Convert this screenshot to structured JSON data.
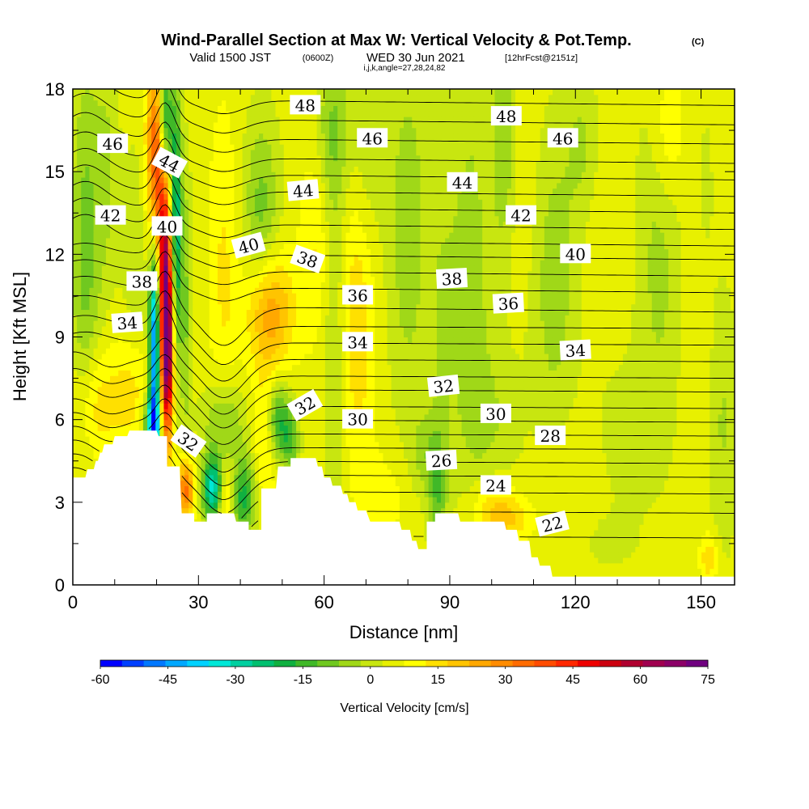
{
  "chart_data": {
    "type": "heatmap",
    "title": "Wind-Parallel Section at Max W: Vertical Velocity & Pot.Temp.",
    "title_unit": "(C)",
    "subtitle_valid": "Valid 1500 JST",
    "subtitle_utc": "(0600Z)",
    "subtitle_date": "WED 30 Jun 2021",
    "subtitle_fcst": "[12hrFcst@2151z]",
    "subtitle_index": "i,j,k,angle=27,28,24,82",
    "xlabel": "Distance [nm]",
    "ylabel": "Height [Kft MSL]",
    "xlim": [
      0,
      158
    ],
    "ylim": [
      0,
      18
    ],
    "x_ticks": [
      "0",
      "30",
      "60",
      "90",
      "120",
      "150"
    ],
    "y_ticks": [
      "0",
      "3",
      "6",
      "9",
      "12",
      "15",
      "18"
    ],
    "colorbar": {
      "title": "Vertical Velocity [cm/s]",
      "min": -60,
      "max": 75,
      "labels": [
        "-60",
        "-45",
        "-30",
        "-15",
        "0",
        "15",
        "30",
        "45",
        "60",
        "75"
      ],
      "colors": [
        "#0000ff",
        "#0040ff",
        "#0078ff",
        "#00a8ff",
        "#00d2ff",
        "#00e8d8",
        "#00d0a0",
        "#00c070",
        "#10b040",
        "#40b828",
        "#70c820",
        "#a0d818",
        "#c8e610",
        "#e8f000",
        "#ffff00",
        "#ffe000",
        "#ffc400",
        "#ffa800",
        "#ff8c00",
        "#ff6c00",
        "#ff4c00",
        "#ff2800",
        "#ee0000",
        "#cc0010",
        "#b00030",
        "#a00050",
        "#8c0068",
        "#700080"
      ]
    },
    "background_level": 5,
    "w_features": [
      {
        "x": 22.5,
        "y": 8.8,
        "sx": 1.1,
        "sy": 2.4,
        "w": 75
      },
      {
        "x": 22.0,
        "y": 12.5,
        "sx": 1.2,
        "sy": 2.0,
        "w": 30
      },
      {
        "x": 20.0,
        "y": 14.5,
        "sx": 1.6,
        "sy": 2.0,
        "w": 28
      },
      {
        "x": 19.5,
        "y": 17.0,
        "sx": 1.5,
        "sy": 1.5,
        "w": 15
      },
      {
        "x": 19.5,
        "y": 8.5,
        "sx": 0.9,
        "sy": 2.6,
        "w": -55
      },
      {
        "x": 24.5,
        "y": 13.0,
        "sx": 1.0,
        "sy": 3.5,
        "w": -35
      },
      {
        "x": 22.0,
        "y": 16.8,
        "sx": 1.0,
        "sy": 1.5,
        "w": -30
      },
      {
        "x": 27.0,
        "y": 10.0,
        "sx": 1.0,
        "sy": 3.5,
        "w": -12
      },
      {
        "x": 19.0,
        "y": 5.8,
        "sx": 1.5,
        "sy": 0.8,
        "w": -35
      },
      {
        "x": 27.0,
        "y": 3.5,
        "sx": 1.4,
        "sy": 0.8,
        "w": 30
      },
      {
        "x": 33.5,
        "y": 3.5,
        "sx": 1.8,
        "sy": 0.8,
        "w": -40
      },
      {
        "x": 36.5,
        "y": 3.3,
        "sx": 1.8,
        "sy": 0.9,
        "w": 18
      },
      {
        "x": 40.5,
        "y": 3.2,
        "sx": 2.2,
        "sy": 1.0,
        "w": -25
      },
      {
        "x": 36.0,
        "y": 5.8,
        "sx": 3.5,
        "sy": 1.2,
        "w": -14
      },
      {
        "x": 46.0,
        "y": 5.5,
        "sx": 2.0,
        "sy": 2.0,
        "w": 10
      },
      {
        "x": 49.0,
        "y": 6.0,
        "sx": 2.0,
        "sy": 1.0,
        "w": -22
      },
      {
        "x": 52.0,
        "y": 5.2,
        "sx": 1.5,
        "sy": 0.8,
        "w": -15
      },
      {
        "x": 47.0,
        "y": 10.0,
        "sx": 4.0,
        "sy": 1.5,
        "w": 22
      },
      {
        "x": 45.0,
        "y": 13.5,
        "sx": 3.0,
        "sy": 2.5,
        "w": -14
      },
      {
        "x": 36.0,
        "y": 11.5,
        "sx": 2.5,
        "sy": 4.0,
        "w": 8
      },
      {
        "x": 3.0,
        "y": 12.0,
        "sx": 2.5,
        "sy": 5.0,
        "w": -14
      },
      {
        "x": 8.0,
        "y": 15.0,
        "sx": 2.0,
        "sy": 3.0,
        "w": -8
      },
      {
        "x": 5.0,
        "y": 6.5,
        "sx": 3.5,
        "sy": 1.5,
        "w": 12
      },
      {
        "x": 14.0,
        "y": 7.0,
        "sx": 3.5,
        "sy": 1.5,
        "w": 10
      },
      {
        "x": 15.0,
        "y": 12.0,
        "sx": 2.5,
        "sy": 3.0,
        "w": -6
      },
      {
        "x": 68.0,
        "y": 10.0,
        "sx": 3.0,
        "sy": 4.0,
        "w": 12
      },
      {
        "x": 62.5,
        "y": 9.5,
        "sx": 2.0,
        "sy": 6.0,
        "w": -8
      },
      {
        "x": 58.0,
        "y": 12.5,
        "sx": 2.5,
        "sy": 2.5,
        "w": 8
      },
      {
        "x": 70.0,
        "y": 15.5,
        "sx": 3.0,
        "sy": 3.0,
        "w": -8
      },
      {
        "x": 62.0,
        "y": 16.5,
        "sx": 3.0,
        "sy": 2.0,
        "w": -10
      },
      {
        "x": 80.0,
        "y": 13.0,
        "sx": 3.5,
        "sy": 5.0,
        "w": -10
      },
      {
        "x": 88.0,
        "y": 9.5,
        "sx": 2.5,
        "sy": 5.0,
        "w": -6
      },
      {
        "x": 87.0,
        "y": 3.5,
        "sx": 1.5,
        "sy": 1.5,
        "w": -15
      },
      {
        "x": 83.5,
        "y": 4.8,
        "sx": 2.0,
        "sy": 1.0,
        "w": -8
      },
      {
        "x": 75.0,
        "y": 3.2,
        "sx": 4.0,
        "sy": 1.2,
        "w": 5
      },
      {
        "x": 95.0,
        "y": 11.0,
        "sx": 3.5,
        "sy": 5.5,
        "w": -10
      },
      {
        "x": 101.0,
        "y": 6.0,
        "sx": 4.5,
        "sy": 2.0,
        "w": -6
      },
      {
        "x": 100.0,
        "y": 2.8,
        "sx": 4.0,
        "sy": 0.8,
        "w": 10
      },
      {
        "x": 104.0,
        "y": 2.4,
        "sx": 4.0,
        "sy": 0.6,
        "w": 10
      },
      {
        "x": 103.0,
        "y": 16.0,
        "sx": 2.0,
        "sy": 3.0,
        "w": -12
      },
      {
        "x": 115.0,
        "y": 11.0,
        "sx": 4.0,
        "sy": 4.0,
        "w": -10
      },
      {
        "x": 107.0,
        "y": 14.5,
        "sx": 3.0,
        "sy": 2.5,
        "w": 3
      },
      {
        "x": 122.0,
        "y": 16.0,
        "sx": 3.0,
        "sy": 2.0,
        "w": -8
      },
      {
        "x": 132.0,
        "y": 5.5,
        "sx": 5.0,
        "sy": 1.8,
        "w": -6
      },
      {
        "x": 127.0,
        "y": 14.0,
        "sx": 4.0,
        "sy": 3.0,
        "w": 3
      },
      {
        "x": 140.0,
        "y": 12.5,
        "sx": 4.0,
        "sy": 5.0,
        "w": -9
      },
      {
        "x": 150.0,
        "y": 9.0,
        "sx": 3.0,
        "sy": 4.0,
        "w": 3
      },
      {
        "x": 142.0,
        "y": 16.5,
        "sx": 3.0,
        "sy": 2.0,
        "w": 10
      },
      {
        "x": 155.0,
        "y": 6.0,
        "sx": 2.5,
        "sy": 3.5,
        "w": -8
      },
      {
        "x": 151.0,
        "y": 14.0,
        "sx": 2.0,
        "sy": 3.0,
        "w": -4
      },
      {
        "x": 152.0,
        "y": 1.0,
        "sx": 1.5,
        "sy": 0.6,
        "w": 12
      },
      {
        "x": 128.0,
        "y": 1.6,
        "sx": 5.0,
        "sy": 0.8,
        "w": -4
      },
      {
        "x": 120.0,
        "y": 4.0,
        "sx": 5.0,
        "sy": 1.5,
        "w": 3
      }
    ],
    "terrain_height": [
      {
        "x": 0,
        "h": 3.9
      },
      {
        "x": 3,
        "h": 3.9
      },
      {
        "x": 3.5,
        "h": 4.2
      },
      {
        "x": 5,
        "h": 4.2
      },
      {
        "x": 5.5,
        "h": 4.5
      },
      {
        "x": 6,
        "h": 4.5
      },
      {
        "x": 6.5,
        "h": 4.8
      },
      {
        "x": 7,
        "h": 4.8
      },
      {
        "x": 7.5,
        "h": 5.1
      },
      {
        "x": 9.5,
        "h": 5.1
      },
      {
        "x": 10,
        "h": 5.4
      },
      {
        "x": 13,
        "h": 5.4
      },
      {
        "x": 13.5,
        "h": 5.6
      },
      {
        "x": 20,
        "h": 5.6
      },
      {
        "x": 20.5,
        "h": 5.4
      },
      {
        "x": 22.5,
        "h": 5.4
      },
      {
        "x": 22.5,
        "h": 4.3
      },
      {
        "x": 25.5,
        "h": 4.3
      },
      {
        "x": 26,
        "h": 2.6
      },
      {
        "x": 29,
        "h": 2.6
      },
      {
        "x": 29,
        "h": 2.3
      },
      {
        "x": 32,
        "h": 2.3
      },
      {
        "x": 32,
        "h": 2.6
      },
      {
        "x": 38.5,
        "h": 2.6
      },
      {
        "x": 39,
        "h": 2.3
      },
      {
        "x": 42,
        "h": 2.3
      },
      {
        "x": 42,
        "h": 2.0
      },
      {
        "x": 45,
        "h": 2.0
      },
      {
        "x": 45,
        "h": 3.5
      },
      {
        "x": 48.5,
        "h": 3.5
      },
      {
        "x": 49,
        "h": 4.3
      },
      {
        "x": 52,
        "h": 4.3
      },
      {
        "x": 52,
        "h": 4.6
      },
      {
        "x": 58,
        "h": 4.6
      },
      {
        "x": 58.5,
        "h": 4.3
      },
      {
        "x": 59.5,
        "h": 4.3
      },
      {
        "x": 60,
        "h": 3.9
      },
      {
        "x": 61.5,
        "h": 3.9
      },
      {
        "x": 62,
        "h": 3.6
      },
      {
        "x": 64,
        "h": 3.6
      },
      {
        "x": 64.5,
        "h": 3.3
      },
      {
        "x": 65.5,
        "h": 3.3
      },
      {
        "x": 66,
        "h": 3.0
      },
      {
        "x": 67.5,
        "h": 3.0
      },
      {
        "x": 68,
        "h": 2.7
      },
      {
        "x": 70,
        "h": 2.7
      },
      {
        "x": 71,
        "h": 2.3
      },
      {
        "x": 78,
        "h": 2.3
      },
      {
        "x": 78.5,
        "h": 2.0
      },
      {
        "x": 80.5,
        "h": 2.0
      },
      {
        "x": 81,
        "h": 1.6
      },
      {
        "x": 82,
        "h": 1.6
      },
      {
        "x": 82.5,
        "h": 1.3
      },
      {
        "x": 84.5,
        "h": 1.3
      },
      {
        "x": 84.5,
        "h": 2.3
      },
      {
        "x": 86.5,
        "h": 2.3
      },
      {
        "x": 86.5,
        "h": 2.6
      },
      {
        "x": 92,
        "h": 2.6
      },
      {
        "x": 92.5,
        "h": 2.3
      },
      {
        "x": 103,
        "h": 2.3
      },
      {
        "x": 103.5,
        "h": 2.0
      },
      {
        "x": 106,
        "h": 2.0
      },
      {
        "x": 106.5,
        "h": 1.6
      },
      {
        "x": 109,
        "h": 1.6
      },
      {
        "x": 109.5,
        "h": 1.0
      },
      {
        "x": 111,
        "h": 1.0
      },
      {
        "x": 111.5,
        "h": 0.7
      },
      {
        "x": 114,
        "h": 0.7
      },
      {
        "x": 114.5,
        "h": 0.3
      },
      {
        "x": 158,
        "h": 0.3
      }
    ],
    "potential_temperature_contours": {
      "levels": [
        22,
        23,
        24,
        25,
        26,
        27,
        28,
        29,
        30,
        31,
        32,
        33,
        34,
        35,
        36,
        37,
        38,
        39,
        40,
        41,
        42,
        43,
        44,
        45,
        46,
        47,
        48
      ],
      "far_field_heights": [
        1.7,
        2.6,
        3.3,
        3.9,
        4.4,
        4.9,
        5.4,
        5.9,
        6.4,
        7.0,
        7.5,
        8.1,
        8.7,
        9.3,
        9.9,
        10.6,
        11.2,
        11.8,
        12.3,
        12.9,
        13.5,
        14.1,
        14.7,
        15.3,
        16.0,
        16.7,
        17.4
      ]
    },
    "contour_labels": [
      {
        "text": "48",
        "x": 55.5,
        "y": 17.4,
        "angle": 0
      },
      {
        "text": "46",
        "x": 9.5,
        "y": 16.0,
        "angle": 0
      },
      {
        "text": "46",
        "x": 71.5,
        "y": 16.2,
        "angle": 0
      },
      {
        "text": "46",
        "x": 117,
        "y": 16.2,
        "angle": 0
      },
      {
        "text": "48",
        "x": 103.5,
        "y": 17.0,
        "angle": 0
      },
      {
        "text": "44",
        "x": 23,
        "y": 15.3,
        "angle": 28
      },
      {
        "text": "44",
        "x": 55,
        "y": 14.3,
        "angle": -5
      },
      {
        "text": "44",
        "x": 93,
        "y": 14.6,
        "angle": 0
      },
      {
        "text": "42",
        "x": 9,
        "y": 13.4,
        "angle": 0
      },
      {
        "text": "42",
        "x": 107,
        "y": 13.4,
        "angle": 0
      },
      {
        "text": "40",
        "x": 22.5,
        "y": 13.0,
        "angle": 0
      },
      {
        "text": "40",
        "x": 42,
        "y": 12.3,
        "angle": -15
      },
      {
        "text": "40",
        "x": 120,
        "y": 12.0,
        "angle": 0
      },
      {
        "text": "38",
        "x": 16.5,
        "y": 11.0,
        "angle": 0
      },
      {
        "text": "38",
        "x": 56,
        "y": 11.8,
        "angle": 20
      },
      {
        "text": "38",
        "x": 90.5,
        "y": 11.1,
        "angle": -3
      },
      {
        "text": "36",
        "x": 68,
        "y": 10.5,
        "angle": 0
      },
      {
        "text": "36",
        "x": 104,
        "y": 10.2,
        "angle": -3
      },
      {
        "text": "34",
        "x": 13,
        "y": 9.5,
        "angle": -4
      },
      {
        "text": "34",
        "x": 68,
        "y": 8.8,
        "angle": 0
      },
      {
        "text": "34",
        "x": 120,
        "y": 8.5,
        "angle": -3
      },
      {
        "text": "32",
        "x": 88.5,
        "y": 7.2,
        "angle": -6
      },
      {
        "text": "32",
        "x": 55.5,
        "y": 6.5,
        "angle": -30
      },
      {
        "text": "32",
        "x": 27.5,
        "y": 5.2,
        "angle": 35
      },
      {
        "text": "30",
        "x": 68,
        "y": 6.0,
        "angle": 0
      },
      {
        "text": "30",
        "x": 101,
        "y": 6.2,
        "angle": 0
      },
      {
        "text": "28",
        "x": 114,
        "y": 5.4,
        "angle": 0
      },
      {
        "text": "26",
        "x": 88,
        "y": 4.5,
        "angle": -3
      },
      {
        "text": "24",
        "x": 101,
        "y": 3.6,
        "angle": 0
      },
      {
        "text": "22",
        "x": 114.5,
        "y": 2.2,
        "angle": -14
      }
    ]
  }
}
